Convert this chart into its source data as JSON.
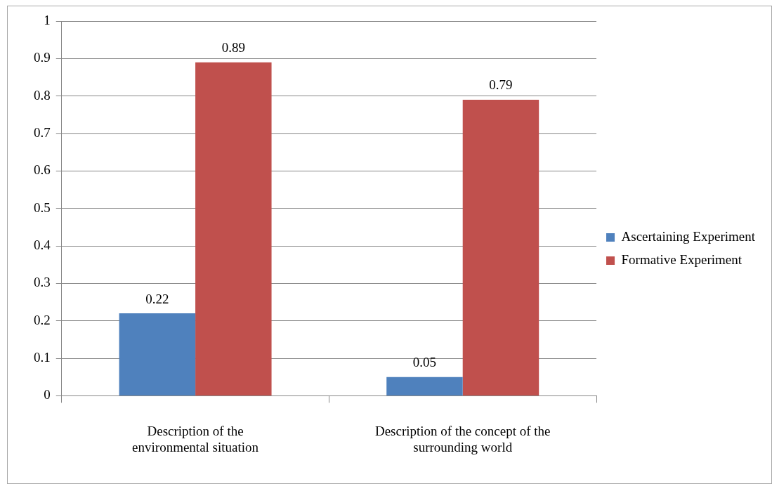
{
  "chart_data": {
    "type": "bar",
    "categories": [
      "Description of the environmental situation",
      "Description of the concept of the surrounding world"
    ],
    "series": [
      {
        "name": "Ascertaining Experiment",
        "color": "#4f81bd",
        "values": [
          0.22,
          0.05
        ]
      },
      {
        "name": "Formative Experiment",
        "color": "#c0504d",
        "values": [
          0.89,
          0.79
        ]
      }
    ],
    "ylim": [
      0,
      1
    ],
    "yticks": [
      0,
      0.1,
      0.2,
      0.3,
      0.4,
      0.5,
      0.6,
      0.7,
      0.8,
      0.9,
      1
    ],
    "grid": "y",
    "legend": "right",
    "data_labels": true
  }
}
